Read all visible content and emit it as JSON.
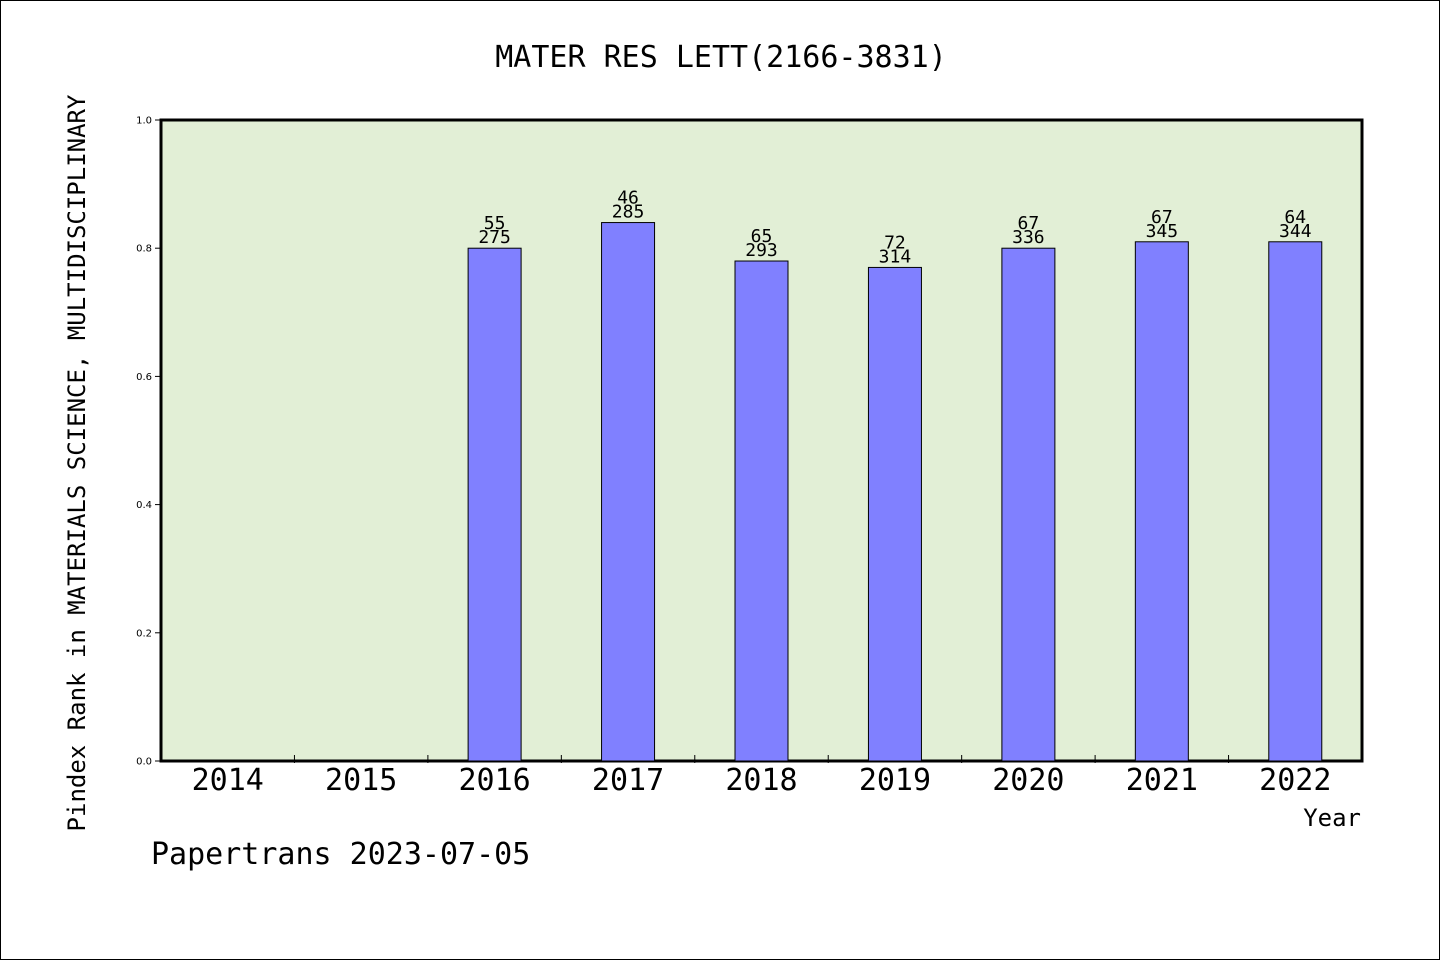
{
  "chart_data": {
    "type": "bar",
    "title": "MATER RES LETT(2166-3831)",
    "xlabel": "Year",
    "ylabel": "Pindex Rank in MATERIALS SCIENCE, MULTIDISCIPLINARY",
    "ylim": [
      0,
      1.0
    ],
    "yticks": [
      "0.0",
      "0.2",
      "0.4",
      "0.6",
      "0.8",
      "1.0"
    ],
    "categories": [
      "2014",
      "2015",
      "2016",
      "2017",
      "2018",
      "2019",
      "2020",
      "2021",
      "2022"
    ],
    "values": [
      null,
      null,
      0.8,
      0.84,
      0.78,
      0.77,
      0.8,
      0.81,
      0.81
    ],
    "labels_top": [
      "",
      "",
      "55",
      "46",
      "65",
      "72",
      "67",
      "67",
      "64"
    ],
    "labels_bottom": [
      "",
      "",
      "275",
      "285",
      "293",
      "314",
      "336",
      "345",
      "344"
    ],
    "grid": false,
    "colors": {
      "plot_background": "#e2efd6",
      "bar_fill": "#8080ff",
      "bar_stroke": "#000000"
    }
  },
  "footer": {
    "text": "Papertrans 2023-07-05"
  }
}
